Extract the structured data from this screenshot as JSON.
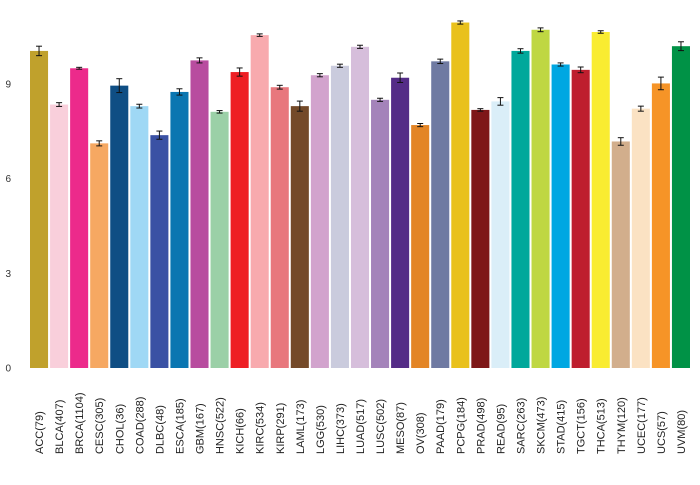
{
  "chart_data": {
    "type": "bar",
    "title": "",
    "xlabel": "",
    "ylabel": "",
    "ylim": [
      0,
      11.3
    ],
    "yticks": [
      0,
      3,
      6,
      9
    ],
    "grid": false,
    "legend": "none",
    "bars": [
      {
        "label": "ACC(79)",
        "value": 10.05,
        "err": 0.15,
        "color": "#C0A12C"
      },
      {
        "label": "BLCA(407)",
        "value": 8.35,
        "err": 0.06,
        "color": "#F9CFDB"
      },
      {
        "label": "BRCA(1104)",
        "value": 9.5,
        "err": 0.03,
        "color": "#EC2A8B"
      },
      {
        "label": "CESC(305)",
        "value": 7.12,
        "err": 0.08,
        "color": "#F6A862"
      },
      {
        "label": "CHOL(36)",
        "value": 8.95,
        "err": 0.22,
        "color": "#0F4E84"
      },
      {
        "label": "COAD(288)",
        "value": 8.3,
        "err": 0.06,
        "color": "#9FD8F5"
      },
      {
        "label": "DLBC(48)",
        "value": 7.38,
        "err": 0.13,
        "color": "#3A51A4"
      },
      {
        "label": "ESCA(185)",
        "value": 8.75,
        "err": 0.1,
        "color": "#0A76B1"
      },
      {
        "label": "GBM(167)",
        "value": 9.75,
        "err": 0.08,
        "color": "#B84C9F"
      },
      {
        "label": "HNSC(522)",
        "value": 8.12,
        "err": 0.04,
        "color": "#9BD0A7"
      },
      {
        "label": "KICH(66)",
        "value": 9.38,
        "err": 0.13,
        "color": "#EE1F24"
      },
      {
        "label": "KIRC(534)",
        "value": 10.55,
        "err": 0.04,
        "color": "#F8AAAE"
      },
      {
        "label": "KIRP(291)",
        "value": 8.9,
        "err": 0.06,
        "color": "#E8777D"
      },
      {
        "label": "LAML(173)",
        "value": 8.3,
        "err": 0.16,
        "color": "#744A29"
      },
      {
        "label": "LGG(530)",
        "value": 9.28,
        "err": 0.05,
        "color": "#D2A3CD"
      },
      {
        "label": "LIHC(373)",
        "value": 9.58,
        "err": 0.05,
        "color": "#CACBDD"
      },
      {
        "label": "LUAD(517)",
        "value": 10.18,
        "err": 0.05,
        "color": "#D6BEDB"
      },
      {
        "label": "LUSC(502)",
        "value": 8.5,
        "err": 0.05,
        "color": "#A483BA"
      },
      {
        "label": "MESO(87)",
        "value": 9.2,
        "err": 0.15,
        "color": "#542C87"
      },
      {
        "label": "OV(308)",
        "value": 7.7,
        "err": 0.05,
        "color": "#E38526"
      },
      {
        "label": "PAAD(179)",
        "value": 9.72,
        "err": 0.07,
        "color": "#6F7AA2"
      },
      {
        "label": "PCPG(184)",
        "value": 10.95,
        "err": 0.05,
        "color": "#E9C11C"
      },
      {
        "label": "PRAD(498)",
        "value": 8.18,
        "err": 0.04,
        "color": "#7E1718"
      },
      {
        "label": "READ(95)",
        "value": 8.45,
        "err": 0.12,
        "color": "#DAEEF8"
      },
      {
        "label": "SARC(263)",
        "value": 10.05,
        "err": 0.07,
        "color": "#00A89B"
      },
      {
        "label": "SKCM(473)",
        "value": 10.72,
        "err": 0.06,
        "color": "#BFD742"
      },
      {
        "label": "STAD(415)",
        "value": 9.62,
        "err": 0.05,
        "color": "#00A7E2"
      },
      {
        "label": "TGCT(156)",
        "value": 9.45,
        "err": 0.09,
        "color": "#BE1E2E"
      },
      {
        "label": "THCA(513)",
        "value": 10.65,
        "err": 0.04,
        "color": "#F9EC31"
      },
      {
        "label": "THYM(120)",
        "value": 7.18,
        "err": 0.12,
        "color": "#D2AE8C"
      },
      {
        "label": "UCEC(177)",
        "value": 8.22,
        "err": 0.08,
        "color": "#FBE2C3"
      },
      {
        "label": "UCS(57)",
        "value": 9.02,
        "err": 0.2,
        "color": "#F69427"
      },
      {
        "label": "UVM(80)",
        "value": 10.2,
        "err": 0.14,
        "color": "#009246"
      }
    ]
  }
}
